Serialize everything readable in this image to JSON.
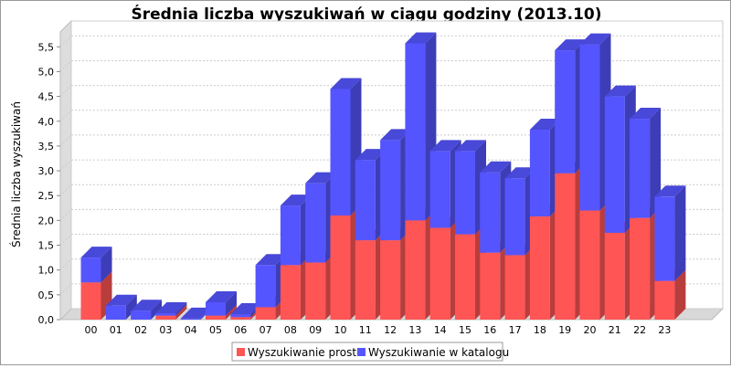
{
  "chart_data": {
    "type": "bar",
    "stacked": true,
    "style": "3d",
    "title": "Średnia liczba wyszukiwań w ciągu godziny (2013.10)",
    "xlabel": "",
    "ylabel": "Średnia liczba wyszukiwań",
    "ylim": [
      0,
      5.8
    ],
    "yticks": [
      0,
      0.5,
      1,
      1.5,
      2,
      2.5,
      3,
      3.5,
      4,
      4.5,
      5,
      5.5
    ],
    "grid": true,
    "legend_position": "bottom",
    "categories": [
      "00",
      "01",
      "02",
      "03",
      "04",
      "05",
      "06",
      "07",
      "08",
      "09",
      "10",
      "11",
      "12",
      "13",
      "14",
      "15",
      "16",
      "17",
      "18",
      "19",
      "20",
      "21",
      "22",
      "23"
    ],
    "series": [
      {
        "name": "Wyszukiwanie proste",
        "color": "#ff5555",
        "values": [
          0.75,
          0.0,
          0.0,
          0.08,
          0.0,
          0.08,
          0.05,
          0.25,
          1.1,
          1.15,
          2.1,
          1.6,
          1.6,
          2.0,
          1.85,
          1.72,
          1.35,
          1.3,
          2.08,
          2.95,
          2.2,
          1.75,
          2.05,
          0.78
        ]
      },
      {
        "name": "Wyszukiwanie w katalogu",
        "color": "#5555ff",
        "values": [
          0.5,
          0.28,
          0.18,
          0.05,
          0.02,
          0.27,
          0.06,
          0.85,
          1.2,
          1.6,
          2.55,
          1.62,
          2.02,
          3.57,
          1.55,
          1.68,
          1.62,
          1.55,
          1.75,
          2.48,
          3.35,
          2.75,
          2.0,
          1.7
        ]
      }
    ]
  }
}
